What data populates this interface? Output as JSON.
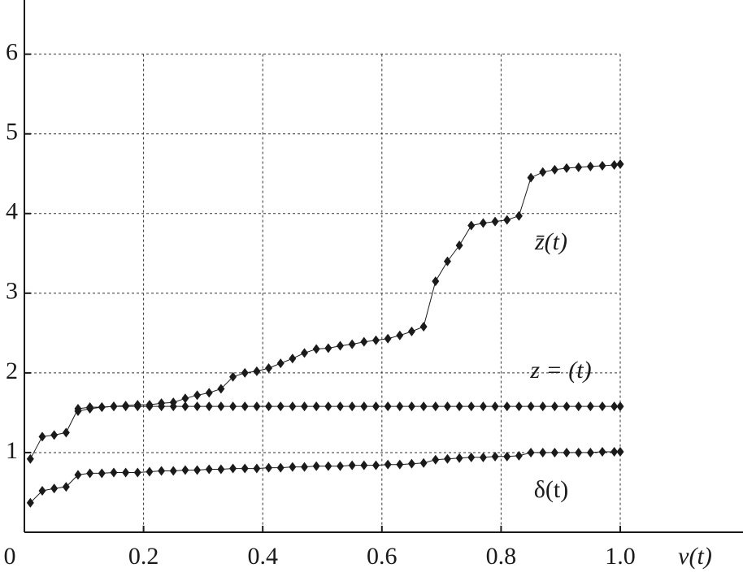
{
  "chart_data": {
    "type": "line",
    "x_label": "v(t)",
    "x": [
      0.01,
      0.03,
      0.05,
      0.07,
      0.09,
      0.11,
      0.13,
      0.15,
      0.17,
      0.19,
      0.21,
      0.23,
      0.25,
      0.27,
      0.29,
      0.31,
      0.33,
      0.35,
      0.37,
      0.39,
      0.41,
      0.43,
      0.45,
      0.47,
      0.49,
      0.51,
      0.53,
      0.55,
      0.57,
      0.59,
      0.61,
      0.63,
      0.65,
      0.67,
      0.69,
      0.71,
      0.73,
      0.75,
      0.77,
      0.79,
      0.81,
      0.83,
      0.85,
      0.87,
      0.89,
      0.91,
      0.93,
      0.95,
      0.97,
      0.99,
      1.0
    ],
    "series": [
      {
        "name": "z̄(t)",
        "color": "#1a1a1a",
        "values": [
          0.92,
          1.2,
          1.22,
          1.25,
          1.55,
          1.57,
          1.57,
          1.58,
          1.59,
          1.6,
          1.6,
          1.62,
          1.63,
          1.68,
          1.72,
          1.75,
          1.8,
          1.95,
          2.0,
          2.02,
          2.06,
          2.12,
          2.18,
          2.25,
          2.3,
          2.31,
          2.34,
          2.36,
          2.39,
          2.41,
          2.43,
          2.47,
          2.52,
          2.58,
          3.15,
          3.4,
          3.6,
          3.85,
          3.88,
          3.9,
          3.92,
          3.97,
          4.45,
          4.52,
          4.55,
          4.57,
          4.58,
          4.59,
          4.6,
          4.61,
          4.62
        ]
      },
      {
        "name": "z = (t)",
        "color": "#1a1a1a",
        "values": [
          null,
          null,
          null,
          null,
          1.52,
          1.55,
          1.57,
          1.58,
          1.58,
          1.58,
          1.58,
          1.58,
          1.58,
          1.58,
          1.58,
          1.58,
          1.58,
          1.58,
          1.58,
          1.58,
          1.58,
          1.58,
          1.58,
          1.58,
          1.58,
          1.58,
          1.58,
          1.58,
          1.58,
          1.58,
          1.58,
          1.58,
          1.58,
          1.58,
          1.58,
          1.58,
          1.58,
          1.58,
          1.58,
          1.58,
          1.58,
          1.58,
          1.58,
          1.58,
          1.58,
          1.58,
          1.58,
          1.58,
          1.58,
          1.58,
          1.58
        ]
      },
      {
        "name": "δ(t)",
        "color": "#1a1a1a",
        "values": [
          0.37,
          0.52,
          0.55,
          0.57,
          0.72,
          0.74,
          0.74,
          0.75,
          0.75,
          0.75,
          0.76,
          0.77,
          0.77,
          0.78,
          0.78,
          0.79,
          0.79,
          0.8,
          0.8,
          0.8,
          0.81,
          0.81,
          0.82,
          0.82,
          0.83,
          0.83,
          0.83,
          0.84,
          0.84,
          0.84,
          0.85,
          0.85,
          0.86,
          0.87,
          0.91,
          0.92,
          0.93,
          0.94,
          0.94,
          0.95,
          0.95,
          0.96,
          1.0,
          1.0,
          1.0,
          1.0,
          1.0,
          1.0,
          1.01,
          1.01,
          1.01
        ]
      }
    ],
    "xlim": [
      0,
      1.206
    ],
    "ylim": [
      0,
      6.68
    ],
    "xticks": [
      0,
      0.2,
      0.4,
      0.6,
      0.8,
      {
        "value": 1,
        "label": "1.0"
      }
    ],
    "yticks": [
      1,
      2,
      3,
      4,
      5,
      6
    ],
    "grid": true
  }
}
